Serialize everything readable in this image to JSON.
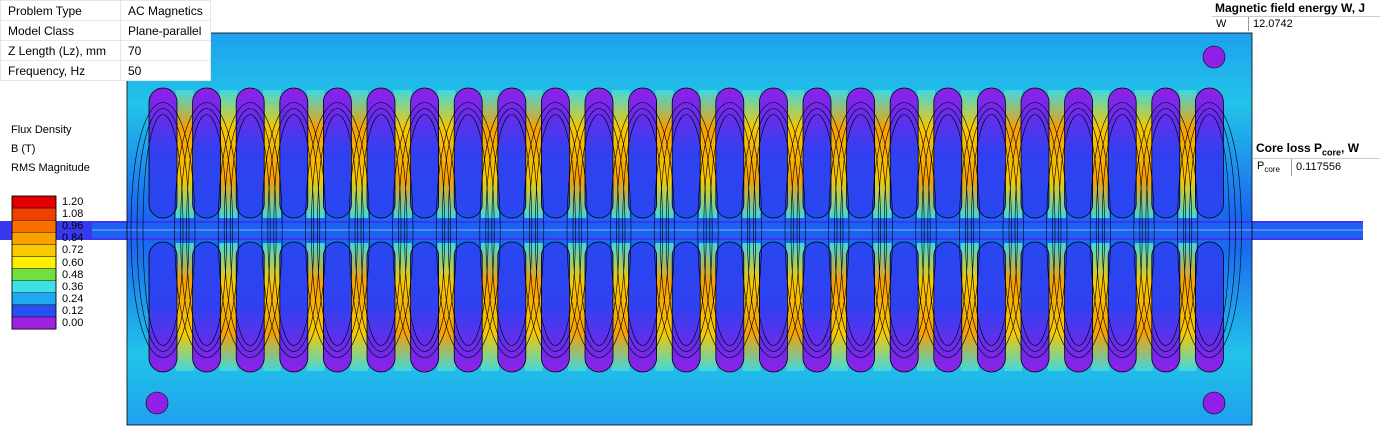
{
  "properties": [
    {
      "label": "Problem Type",
      "value": "AC Magnetics"
    },
    {
      "label": "Model Class",
      "value": "Plane-parallel"
    },
    {
      "label": "Z Length (Lz), mm",
      "value": "70"
    },
    {
      "label": "Frequency, Hz",
      "value": "50"
    }
  ],
  "legend": {
    "title_lines": [
      "Flux Density",
      "B (T)",
      "RMS Magnitude"
    ],
    "levels": [
      "1.20",
      "1.08",
      "0.96",
      "0.84",
      "0.72",
      "0.60",
      "0.48",
      "0.36",
      "0.24",
      "0.12",
      "0.00"
    ],
    "colors": [
      "#e00000",
      "#f04000",
      "#f87000",
      "#f8a000",
      "#f8c800",
      "#ffee00",
      "#70e040",
      "#40e0e8",
      "#20a8f0",
      "#2850f0",
      "#a020e0"
    ]
  },
  "energy_table": {
    "title": "Magnetic field energy W, J",
    "row_label": "W",
    "row_value": "12.0742"
  },
  "core_loss_table": {
    "title_prefix": "Core loss P",
    "title_sub": "core",
    "title_suffix": ", W",
    "row_label": "P",
    "row_label_sub": "core",
    "row_value": "0.117556"
  }
}
